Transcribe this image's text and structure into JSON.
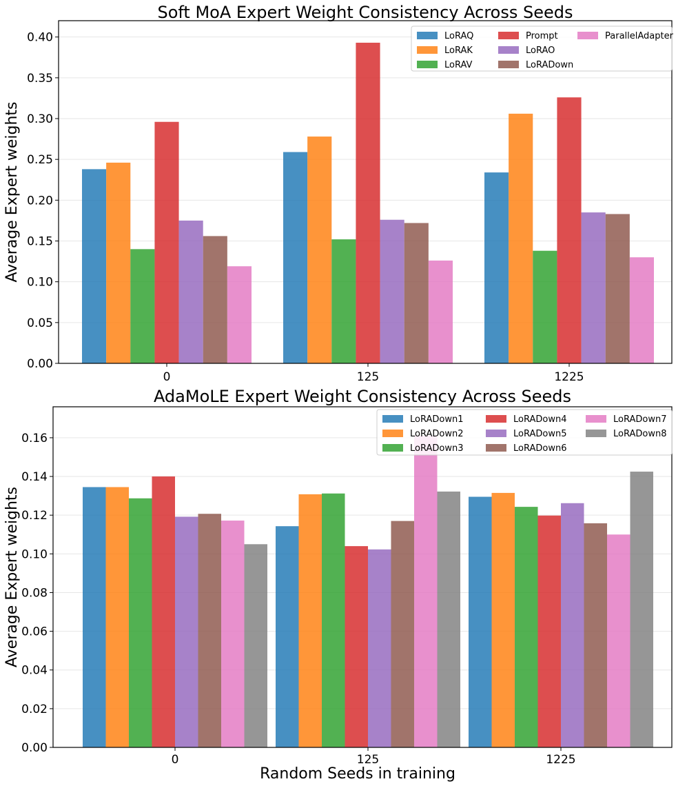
{
  "chart_data": [
    {
      "type": "bar",
      "title": "Soft MoA Expert Weight Consistency Across Seeds",
      "xlabel": "",
      "ylabel": "Average Expert weights",
      "categories": [
        "0",
        "125",
        "1225"
      ],
      "ylim": [
        0,
        0.42
      ],
      "yticks": [
        "0.00",
        "0.05",
        "0.10",
        "0.15",
        "0.20",
        "0.25",
        "0.30",
        "0.35",
        "0.40"
      ],
      "legend_position": "top-right",
      "legend_columns": 3,
      "grid": "y",
      "series": [
        {
          "name": "LoRAQ",
          "color": "#1f77b4",
          "values": [
            0.238,
            0.259,
            0.234
          ]
        },
        {
          "name": "LoRAK",
          "color": "#ff7f0e",
          "values": [
            0.246,
            0.278,
            0.306
          ]
        },
        {
          "name": "LoRAV",
          "color": "#2ca02c",
          "values": [
            0.14,
            0.152,
            0.138
          ]
        },
        {
          "name": "Prompt",
          "color": "#d62728",
          "values": [
            0.296,
            0.393,
            0.326
          ]
        },
        {
          "name": "LoRAO",
          "color": "#9467bd",
          "values": [
            0.175,
            0.176,
            0.185
          ]
        },
        {
          "name": "LoRADown",
          "color": "#8c564b",
          "values": [
            0.156,
            0.172,
            0.183
          ]
        },
        {
          "name": "ParallelAdapter",
          "color": "#e377c2",
          "values": [
            0.119,
            0.126,
            0.13
          ]
        }
      ]
    },
    {
      "type": "bar",
      "title": "AdaMoLE Expert Weight Consistency Across Seeds",
      "xlabel": "Random Seeds in training",
      "ylabel": "Average Expert weights",
      "categories": [
        "0",
        "125",
        "1225"
      ],
      "ylim": [
        0,
        0.176
      ],
      "yticks": [
        "0.00",
        "0.02",
        "0.04",
        "0.06",
        "0.08",
        "0.10",
        "0.12",
        "0.14",
        "0.16"
      ],
      "legend_position": "top-right",
      "legend_columns": 3,
      "grid": "y",
      "series": [
        {
          "name": "LoRADown1",
          "color": "#1f77b4",
          "values": [
            0.1345,
            0.1143,
            0.1295
          ]
        },
        {
          "name": "LoRADown2",
          "color": "#ff7f0e",
          "values": [
            0.1345,
            0.1308,
            0.1315
          ]
        },
        {
          "name": "LoRADown3",
          "color": "#2ca02c",
          "values": [
            0.1287,
            0.1312,
            0.1243
          ]
        },
        {
          "name": "LoRADown4",
          "color": "#d62728",
          "values": [
            0.14,
            0.104,
            0.1198
          ]
        },
        {
          "name": "LoRADown5",
          "color": "#9467bd",
          "values": [
            0.1192,
            0.1023,
            0.1262
          ]
        },
        {
          "name": "LoRADown6",
          "color": "#8c564b",
          "values": [
            0.1207,
            0.117,
            0.1158
          ]
        },
        {
          "name": "LoRADown7",
          "color": "#e377c2",
          "values": [
            0.1172,
            0.161,
            0.11
          ]
        },
        {
          "name": "LoRADown8",
          "color": "#7f7f7f",
          "values": [
            0.105,
            0.1322,
            0.1425
          ]
        }
      ]
    }
  ]
}
